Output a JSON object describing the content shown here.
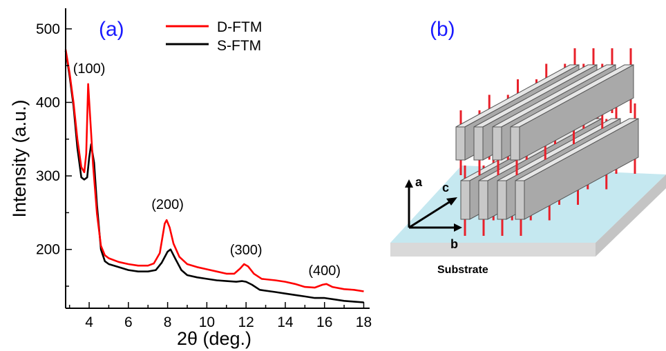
{
  "panel_a": {
    "label": "(a)",
    "chart_data": {
      "type": "line",
      "xlabel": "2θ (deg.)",
      "ylabel": "Intensity (a.u.)",
      "xlim": [
        2.8,
        18.3
      ],
      "ylim": [
        120,
        528
      ],
      "xticks": [
        4,
        6,
        8,
        10,
        12,
        14,
        16,
        18
      ],
      "yticks": [
        200,
        300,
        400,
        500
      ],
      "legend_position": "top-center",
      "series": [
        {
          "name": "D-FTM",
          "color": "#ff0000",
          "points": [
            [
              2.8,
              472
            ],
            [
              3.0,
              440
            ],
            [
              3.2,
              400
            ],
            [
              3.4,
              350
            ],
            [
              3.6,
              312
            ],
            [
              3.75,
              305
            ],
            [
              3.85,
              330
            ],
            [
              3.95,
              425
            ],
            [
              4.05,
              380
            ],
            [
              4.2,
              315
            ],
            [
              4.4,
              248
            ],
            [
              4.6,
              205
            ],
            [
              4.8,
              192
            ],
            [
              5.0,
              188
            ],
            [
              5.5,
              183
            ],
            [
              6.0,
              180
            ],
            [
              6.5,
              178
            ],
            [
              7.0,
              178
            ],
            [
              7.3,
              181
            ],
            [
              7.6,
              195
            ],
            [
              7.85,
              235
            ],
            [
              7.95,
              240
            ],
            [
              8.1,
              230
            ],
            [
              8.3,
              208
            ],
            [
              8.6,
              190
            ],
            [
              9.0,
              180
            ],
            [
              9.5,
              176
            ],
            [
              10.0,
              173
            ],
            [
              10.5,
              170
            ],
            [
              11.0,
              167
            ],
            [
              11.4,
              167
            ],
            [
              11.7,
              174
            ],
            [
              11.9,
              180
            ],
            [
              12.1,
              177
            ],
            [
              12.4,
              167
            ],
            [
              12.8,
              160
            ],
            [
              13.5,
              158
            ],
            [
              14.0,
              156
            ],
            [
              14.5,
              153
            ],
            [
              15.0,
              149
            ],
            [
              15.5,
              148
            ],
            [
              15.9,
              152
            ],
            [
              16.1,
              153
            ],
            [
              16.4,
              149
            ],
            [
              17.0,
              146
            ],
            [
              17.5,
              145
            ],
            [
              18.0,
              143
            ]
          ]
        },
        {
          "name": "S-FTM",
          "color": "#000000",
          "points": [
            [
              2.8,
              470
            ],
            [
              3.0,
              436
            ],
            [
              3.2,
              395
            ],
            [
              3.4,
              338
            ],
            [
              3.6,
              298
            ],
            [
              3.75,
              295
            ],
            [
              3.9,
              298
            ],
            [
              4.0,
              325
            ],
            [
              4.1,
              343
            ],
            [
              4.25,
              318
            ],
            [
              4.4,
              260
            ],
            [
              4.6,
              200
            ],
            [
              4.8,
              184
            ],
            [
              5.0,
              180
            ],
            [
              5.5,
              176
            ],
            [
              6.0,
              172
            ],
            [
              6.5,
              170
            ],
            [
              7.0,
              170
            ],
            [
              7.4,
              172
            ],
            [
              7.7,
              182
            ],
            [
              8.0,
              197
            ],
            [
              8.15,
              200
            ],
            [
              8.4,
              187
            ],
            [
              8.7,
              172
            ],
            [
              9.0,
              165
            ],
            [
              9.5,
              162
            ],
            [
              10.0,
              160
            ],
            [
              10.5,
              158
            ],
            [
              11.0,
              157
            ],
            [
              11.5,
              156
            ],
            [
              11.8,
              157
            ],
            [
              12.0,
              156
            ],
            [
              12.3,
              152
            ],
            [
              12.7,
              145
            ],
            [
              13.5,
              142
            ],
            [
              14.0,
              140
            ],
            [
              14.5,
              138
            ],
            [
              15.0,
              136
            ],
            [
              15.5,
              134
            ],
            [
              16.0,
              134
            ],
            [
              16.5,
              132
            ],
            [
              17.0,
              130
            ],
            [
              17.5,
              129
            ],
            [
              18.0,
              128
            ]
          ]
        }
      ],
      "annotations": [
        {
          "text": "(100)",
          "x": 4.0,
          "y": 440
        },
        {
          "text": "(200)",
          "x": 8.0,
          "y": 255
        },
        {
          "text": "(300)",
          "x": 12.0,
          "y": 193
        },
        {
          "text": "(400)",
          "x": 16.0,
          "y": 165
        }
      ]
    }
  },
  "panel_b": {
    "label": "(b)",
    "axis_a": "a",
    "axis_b": "b",
    "axis_c": "c",
    "substrate_label": "Substrate",
    "colors": {
      "substrate_top": "#c5e8f0",
      "substrate_side": "#d9d9d9",
      "block_front": "#c8c8c8",
      "block_top": "#e6e6e6",
      "block_outline": "#555555",
      "chain": "#e8202a"
    }
  }
}
